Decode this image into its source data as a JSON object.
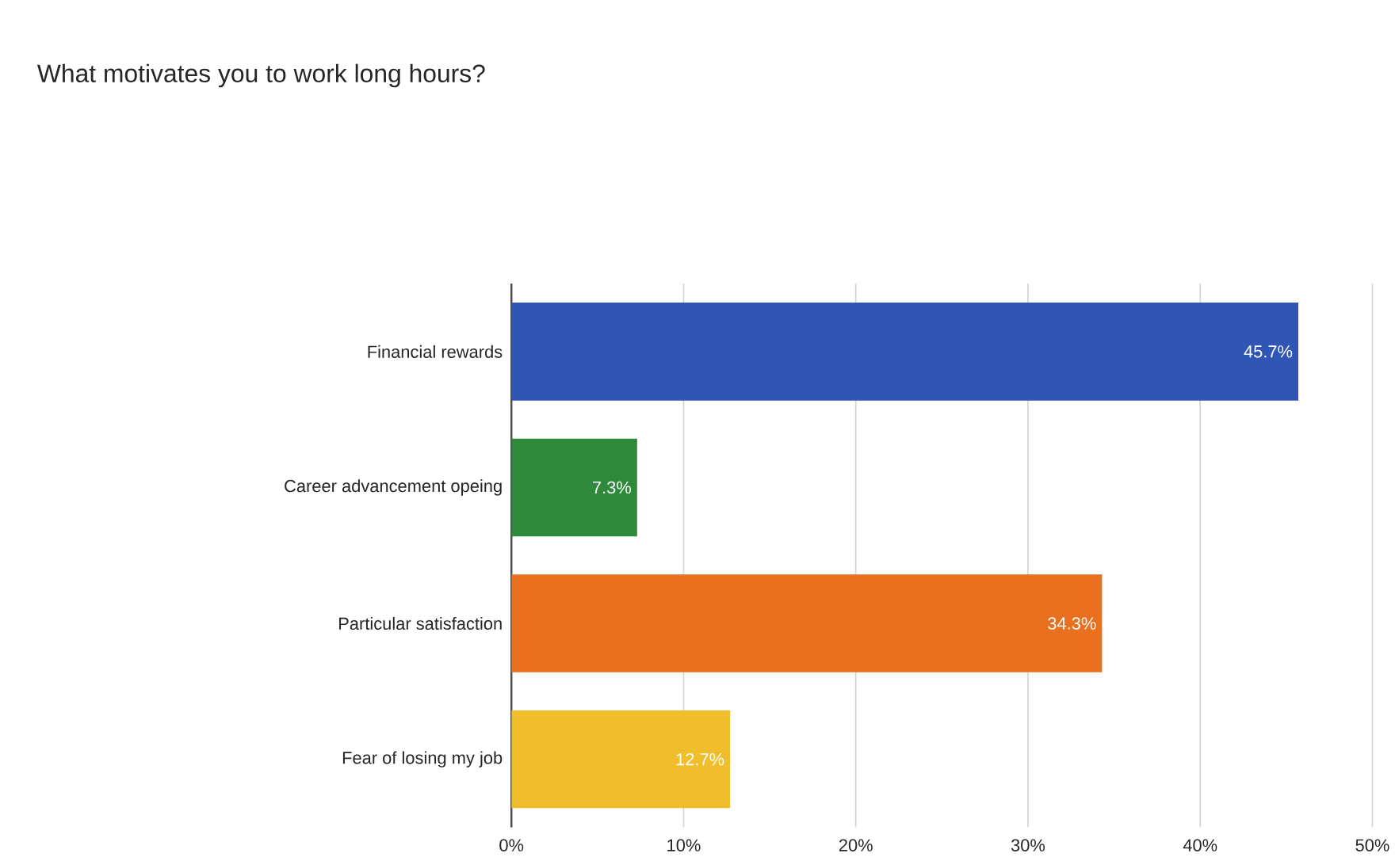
{
  "chart_data": {
    "type": "bar",
    "orientation": "horizontal",
    "title": "What motivates you to work long hours?",
    "categories": [
      "Financial rewards",
      "Career advancement opeing",
      "Particular satisfaction",
      "Fear of losing my job"
    ],
    "values": [
      45.7,
      7.3,
      34.3,
      12.7
    ],
    "value_labels": [
      "45.7%",
      "7.3%",
      "34.3%",
      "12.7%"
    ],
    "colors": [
      "#2f55b5",
      "#2e8a3a",
      "#e8701e",
      "#f0be2c"
    ],
    "xlim": [
      0,
      50
    ],
    "xticks": [
      {
        "value": 0,
        "label": "0%"
      },
      {
        "value": 10,
        "label": "10%"
      },
      {
        "value": 20,
        "label": "20%"
      },
      {
        "value": 30,
        "label": "30%"
      },
      {
        "value": 40,
        "label": "40%"
      },
      {
        "value": 50,
        "label": "50%"
      }
    ],
    "grid": "x"
  }
}
